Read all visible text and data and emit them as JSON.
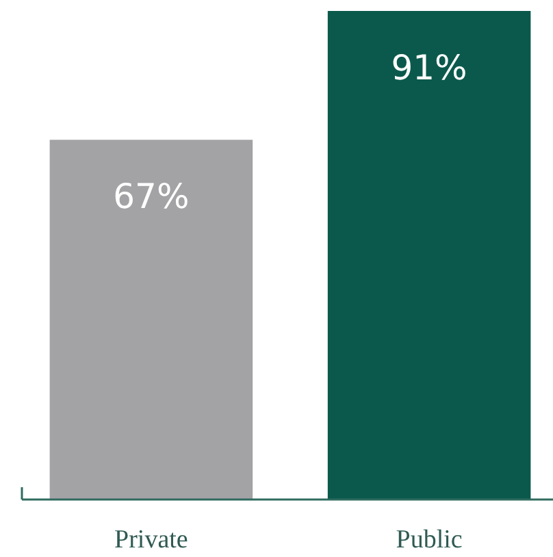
{
  "chart_data": {
    "type": "bar",
    "categories": [
      "Private",
      "Public"
    ],
    "values": [
      67,
      91
    ],
    "colors": [
      "#a3a3a6",
      "#0b594c"
    ],
    "value_labels": [
      "67%",
      "91%"
    ]
  }
}
